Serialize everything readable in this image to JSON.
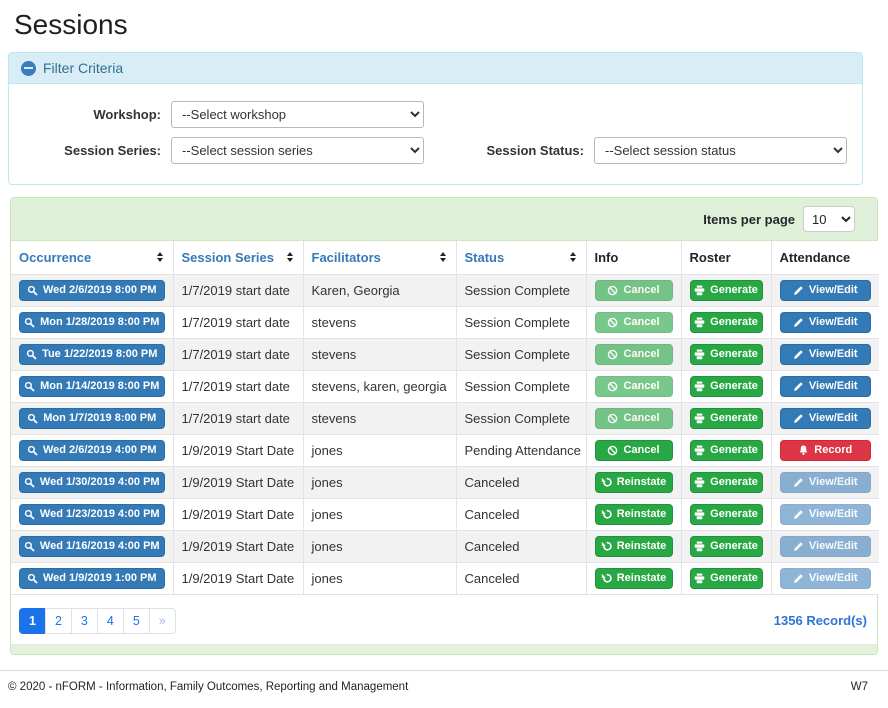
{
  "page": {
    "title": "Sessions"
  },
  "filter": {
    "header_label": "Filter Criteria",
    "collapse_icon": "minus-circle-icon",
    "fields": {
      "workshop": {
        "label": "Workshop:",
        "placeholder": "--Select workshop"
      },
      "session_series": {
        "label": "Session Series:",
        "placeholder": "--Select session series"
      },
      "session_status": {
        "label": "Session Status:",
        "placeholder": "--Select session status"
      }
    }
  },
  "table": {
    "items_per_page_label": "Items per page",
    "items_per_page_value": "10",
    "columns": [
      {
        "label": "Occurrence",
        "sortable": true
      },
      {
        "label": "Session Series",
        "sortable": true
      },
      {
        "label": "Facilitators",
        "sortable": true
      },
      {
        "label": "Status",
        "sortable": true
      },
      {
        "label": "Info",
        "sortable": false
      },
      {
        "label": "Roster",
        "sortable": false
      },
      {
        "label": "Attendance",
        "sortable": false
      }
    ],
    "occurrence_icon": "search-icon",
    "rows": [
      {
        "occurrence": "Wed 2/6/2019 8:00 PM",
        "session_series": "1/7/2019 start date",
        "facilitators": "Karen, Georgia",
        "status": "Session Complete",
        "info": {
          "label": "Cancel",
          "icon": "ban-icon",
          "variant": "success-disabled"
        },
        "roster": {
          "label": "Generate",
          "icon": "printer-icon",
          "variant": "success"
        },
        "attendance": {
          "label": "View/Edit",
          "icon": "pencil-icon",
          "variant": "primary"
        }
      },
      {
        "occurrence": "Mon 1/28/2019 8:00 PM",
        "session_series": "1/7/2019 start date",
        "facilitators": "stevens",
        "status": "Session Complete",
        "info": {
          "label": "Cancel",
          "icon": "ban-icon",
          "variant": "success-disabled"
        },
        "roster": {
          "label": "Generate",
          "icon": "printer-icon",
          "variant": "success"
        },
        "attendance": {
          "label": "View/Edit",
          "icon": "pencil-icon",
          "variant": "primary"
        }
      },
      {
        "occurrence": "Tue 1/22/2019 8:00 PM",
        "session_series": "1/7/2019 start date",
        "facilitators": "stevens",
        "status": "Session Complete",
        "info": {
          "label": "Cancel",
          "icon": "ban-icon",
          "variant": "success-disabled"
        },
        "roster": {
          "label": "Generate",
          "icon": "printer-icon",
          "variant": "success"
        },
        "attendance": {
          "label": "View/Edit",
          "icon": "pencil-icon",
          "variant": "primary"
        }
      },
      {
        "occurrence": "Mon 1/14/2019 8:00 PM",
        "session_series": "1/7/2019 start date",
        "facilitators": "stevens, karen, georgia",
        "status": "Session Complete",
        "info": {
          "label": "Cancel",
          "icon": "ban-icon",
          "variant": "success-disabled"
        },
        "roster": {
          "label": "Generate",
          "icon": "printer-icon",
          "variant": "success"
        },
        "attendance": {
          "label": "View/Edit",
          "icon": "pencil-icon",
          "variant": "primary"
        }
      },
      {
        "occurrence": "Mon 1/7/2019 8:00 PM",
        "session_series": "1/7/2019 start date",
        "facilitators": "stevens",
        "status": "Session Complete",
        "info": {
          "label": "Cancel",
          "icon": "ban-icon",
          "variant": "success-disabled"
        },
        "roster": {
          "label": "Generate",
          "icon": "printer-icon",
          "variant": "success"
        },
        "attendance": {
          "label": "View/Edit",
          "icon": "pencil-icon",
          "variant": "primary"
        }
      },
      {
        "occurrence": "Wed 2/6/2019 4:00 PM",
        "session_series": "1/9/2019 Start Date",
        "facilitators": "jones",
        "status": "Pending Attendance",
        "info": {
          "label": "Cancel",
          "icon": "ban-icon",
          "variant": "success"
        },
        "roster": {
          "label": "Generate",
          "icon": "printer-icon",
          "variant": "success"
        },
        "attendance": {
          "label": "Record",
          "icon": "bell-icon",
          "variant": "danger"
        }
      },
      {
        "occurrence": "Wed 1/30/2019 4:00 PM",
        "session_series": "1/9/2019 Start Date",
        "facilitators": "jones",
        "status": "Canceled",
        "info": {
          "label": "Reinstate",
          "icon": "undo-icon",
          "variant": "success"
        },
        "roster": {
          "label": "Generate",
          "icon": "printer-icon",
          "variant": "success"
        },
        "attendance": {
          "label": "View/Edit",
          "icon": "pencil-icon",
          "variant": "primary-disabled"
        }
      },
      {
        "occurrence": "Wed 1/23/2019 4:00 PM",
        "session_series": "1/9/2019 Start Date",
        "facilitators": "jones",
        "status": "Canceled",
        "info": {
          "label": "Reinstate",
          "icon": "undo-icon",
          "variant": "success"
        },
        "roster": {
          "label": "Generate",
          "icon": "printer-icon",
          "variant": "success"
        },
        "attendance": {
          "label": "View/Edit",
          "icon": "pencil-icon",
          "variant": "primary-disabled"
        }
      },
      {
        "occurrence": "Wed 1/16/2019 4:00 PM",
        "session_series": "1/9/2019 Start Date",
        "facilitators": "jones",
        "status": "Canceled",
        "info": {
          "label": "Reinstate",
          "icon": "undo-icon",
          "variant": "success"
        },
        "roster": {
          "label": "Generate",
          "icon": "printer-icon",
          "variant": "success"
        },
        "attendance": {
          "label": "View/Edit",
          "icon": "pencil-icon",
          "variant": "primary-disabled"
        }
      },
      {
        "occurrence": "Wed 1/9/2019 1:00 PM",
        "session_series": "1/9/2019 Start Date",
        "facilitators": "jones",
        "status": "Canceled",
        "info": {
          "label": "Reinstate",
          "icon": "undo-icon",
          "variant": "success"
        },
        "roster": {
          "label": "Generate",
          "icon": "printer-icon",
          "variant": "success"
        },
        "attendance": {
          "label": "View/Edit",
          "icon": "pencil-icon",
          "variant": "primary-disabled"
        }
      }
    ]
  },
  "pagination": {
    "pages": [
      "1",
      "2",
      "3",
      "4",
      "5"
    ],
    "active": "1",
    "next_label": "»",
    "records_label": "1356 Record(s)"
  },
  "footer": {
    "copyright": "© 2020 - nFORM - Information, Family Outcomes, Reporting and Management",
    "environment": "W7"
  },
  "colors": {
    "primary_blue": "#337ab7",
    "success_green": "#28a745",
    "danger_red": "#dc3545",
    "panel_info_header_bg": "#d9edf7",
    "panel_info_border": "#bce8f1",
    "panel_info_text": "#31708f",
    "panel_success_header_bg": "#dff0d8",
    "panel_success_border": "#cde3bc",
    "pagination_active_blue": "#1a73e8",
    "row_stripe": "#f2f2f2"
  }
}
